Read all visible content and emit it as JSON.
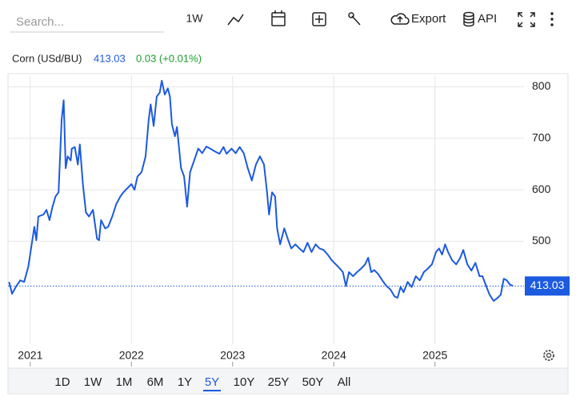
{
  "search_placeholder": "Search...",
  "toolbar": {
    "interval": "1W",
    "export": "Export",
    "api": "API"
  },
  "ranges": [
    "1D",
    "1W",
    "1M",
    "6M",
    "1Y",
    "5Y",
    "10Y",
    "25Y",
    "50Y",
    "All"
  ],
  "selected_range": "5Y",
  "chart_data": {
    "type": "line",
    "change_label": "0.03 (+0.01%)",
    "last_value": 413.03,
    "xlim": [
      2020.78,
      2025.88
    ],
    "xticks": [
      2021,
      2022,
      2023,
      2024,
      2025
    ],
    "ylim": [
      300,
      821
    ],
    "yticks": [
      500,
      600,
      700,
      800
    ],
    "grid": true,
    "series": [
      {
        "name": "Corn (USd/BU)",
        "color": "#1c5ae0",
        "x": [
          2020.79,
          2020.82,
          2020.86,
          2020.9,
          2020.94,
          2020.98,
          2021.02,
          2021.04,
          2021.06,
          2021.08,
          2021.13,
          2021.16,
          2021.19,
          2021.22,
          2021.25,
          2021.28,
          2021.31,
          2021.33,
          2021.35,
          2021.37,
          2021.4,
          2021.41,
          2021.44,
          2021.47,
          2021.49,
          2021.52,
          2021.55,
          2021.58,
          2021.62,
          2021.66,
          2021.68,
          2021.7,
          2021.74,
          2021.77,
          2021.81,
          2021.85,
          2021.89,
          2021.92,
          2021.96,
          2022.0,
          2022.03,
          2022.06,
          2022.1,
          2022.14,
          2022.17,
          2022.19,
          2022.22,
          2022.25,
          2022.28,
          2022.3,
          2022.33,
          2022.36,
          2022.38,
          2022.4,
          2022.43,
          2022.45,
          2022.49,
          2022.52,
          2022.55,
          2022.58,
          2022.62,
          2022.66,
          2022.7,
          2022.74,
          2022.78,
          2022.82,
          2022.87,
          2022.91,
          2022.94,
          2022.99,
          2023.03,
          2023.07,
          2023.11,
          2023.15,
          2023.19,
          2023.23,
          2023.27,
          2023.31,
          2023.34,
          2023.36,
          2023.39,
          2023.42,
          2023.44,
          2023.47,
          2023.51,
          2023.55,
          2023.58,
          2023.62,
          2023.66,
          2023.7,
          2023.74,
          2023.78,
          2023.82,
          2023.86,
          2023.9,
          2023.94,
          2023.98,
          2024.02,
          2024.06,
          2024.09,
          2024.12,
          2024.15,
          2024.19,
          2024.23,
          2024.27,
          2024.31,
          2024.34,
          2024.37,
          2024.4,
          2024.44,
          2024.48,
          2024.52,
          2024.56,
          2024.6,
          2024.63,
          2024.66,
          2024.69,
          2024.73,
          2024.77,
          2024.81,
          2024.85,
          2024.89,
          2024.93,
          2024.97,
          2025.01,
          2025.04,
          2025.07,
          2025.1,
          2025.13,
          2025.17,
          2025.21,
          2025.25,
          2025.28,
          2025.32,
          2025.36,
          2025.4,
          2025.44,
          2025.47,
          2025.51,
          2025.54,
          2025.58,
          2025.62,
          2025.65,
          2025.68,
          2025.71,
          2025.74,
          2025.77
        ],
        "values": [
          421,
          398,
          412,
          424,
          421,
          450,
          502,
          528,
          502,
          548,
          552,
          561,
          541,
          567,
          587,
          595,
          735,
          774,
          642,
          665,
          657,
          680,
          683,
          649,
          688,
          611,
          556,
          548,
          561,
          505,
          502,
          541,
          525,
          528,
          548,
          572,
          587,
          595,
          603,
          611,
          600,
          626,
          634,
          665,
          735,
          766,
          724,
          781,
          789,
          812,
          785,
          797,
          781,
          727,
          704,
          722,
          642,
          626,
          567,
          634,
          657,
          680,
          671,
          684,
          680,
          675,
          670,
          683,
          670,
          680,
          671,
          683,
          671,
          642,
          618,
          649,
          665,
          649,
          595,
          552,
          595,
          587,
          525,
          494,
          525,
          502,
          486,
          494,
          486,
          479,
          497,
          479,
          494,
          486,
          483,
          474,
          463,
          455,
          447,
          440,
          413,
          440,
          432,
          440,
          447,
          455,
          468,
          440,
          444,
          436,
          424,
          413,
          406,
          393,
          390,
          411,
          401,
          421,
          411,
          432,
          424,
          440,
          447,
          455,
          479,
          486,
          474,
          494,
          479,
          463,
          455,
          468,
          483,
          455,
          443,
          458,
          432,
          432,
          411,
          396,
          384,
          390,
          396,
          427,
          424,
          416,
          413.03
        ]
      }
    ]
  }
}
